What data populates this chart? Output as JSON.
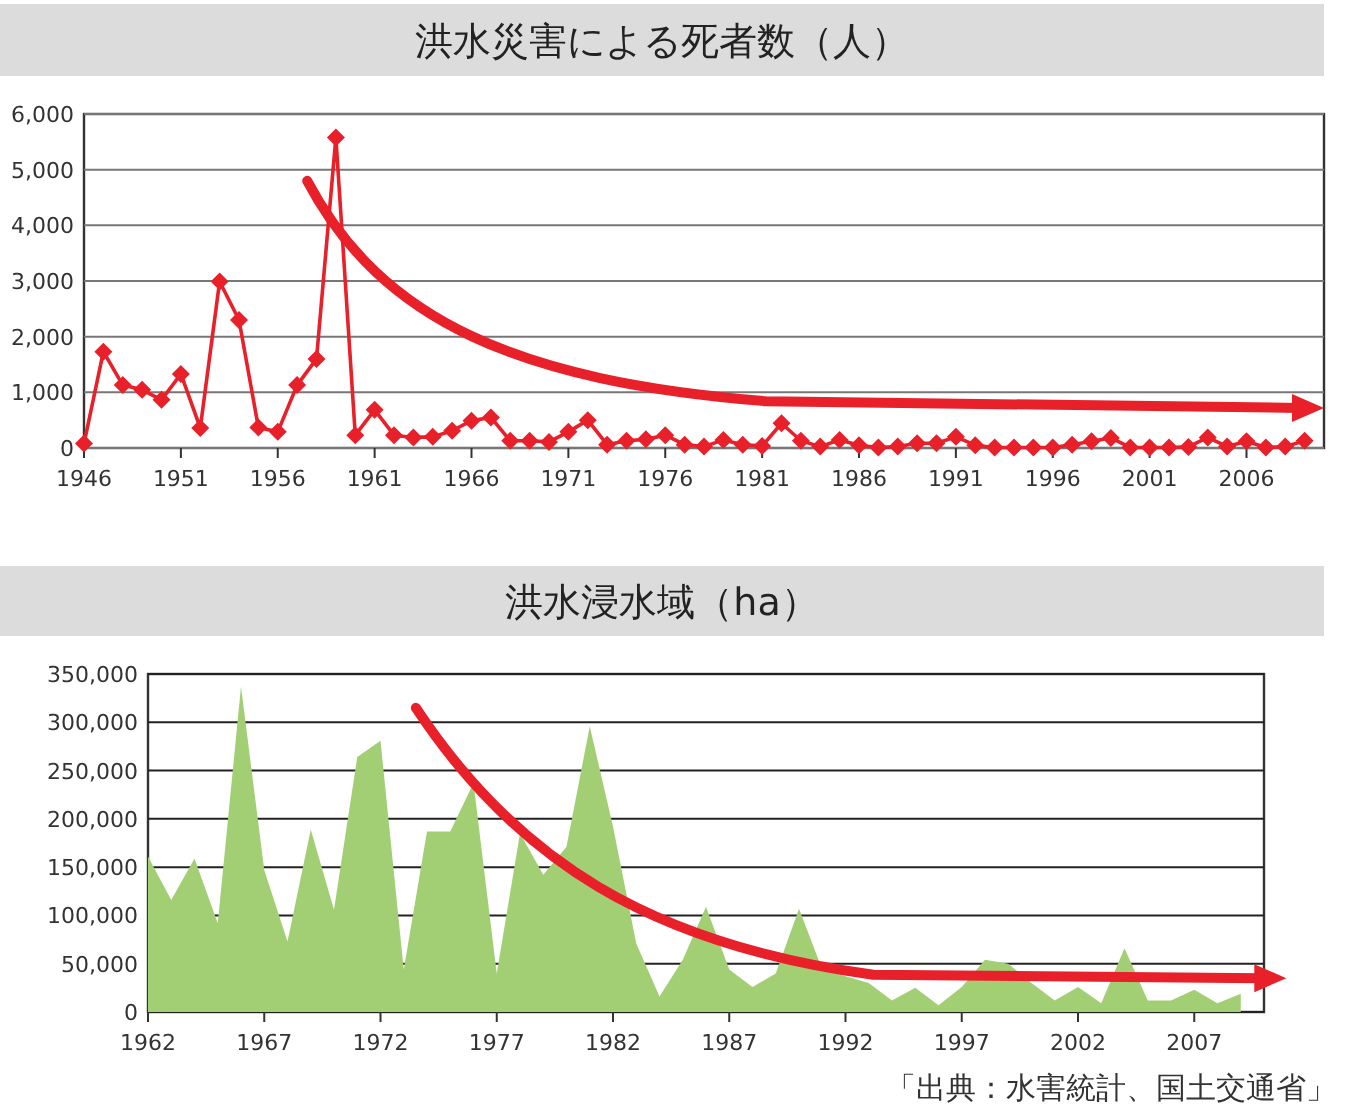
{
  "chart_data": [
    {
      "type": "line",
      "title": "洪水災害による死者数（人）",
      "marker": "diamond",
      "grid": "y",
      "x": [
        1946,
        1947,
        1948,
        1949,
        1950,
        1951,
        1952,
        1953,
        1954,
        1955,
        1956,
        1957,
        1958,
        1959,
        1960,
        1961,
        1962,
        1963,
        1964,
        1965,
        1966,
        1967,
        1968,
        1969,
        1970,
        1971,
        1972,
        1973,
        1974,
        1975,
        1976,
        1977,
        1978,
        1979,
        1980,
        1981,
        1982,
        1983,
        1984,
        1985,
        1986,
        1987,
        1988,
        1989,
        1990,
        1991,
        1992,
        1993,
        1994,
        1995,
        1996,
        1997,
        1998,
        1999,
        2000,
        2001,
        2002,
        2003,
        2004,
        2005,
        2006,
        2007,
        2008,
        2009
      ],
      "series": [
        {
          "color": "#e8202a",
          "values": [
            80,
            1730,
            1130,
            1045,
            865,
            1330,
            360,
            2990,
            2300,
            370,
            290,
            1130,
            1600,
            5580,
            230,
            685,
            230,
            190,
            200,
            310,
            490,
            550,
            130,
            130,
            110,
            290,
            500,
            60,
            130,
            155,
            230,
            60,
            25,
            145,
            60,
            35,
            445,
            130,
            25,
            145,
            50,
            10,
            25,
            85,
            85,
            200,
            50,
            10,
            10,
            10,
            10,
            60,
            120,
            180,
            10,
            10,
            10,
            20,
            190,
            25,
            120,
            10,
            25,
            130
          ]
        }
      ],
      "xlim": [
        1946,
        2010
      ],
      "xticks": [
        1946,
        1951,
        1956,
        1961,
        1966,
        1971,
        1976,
        1981,
        1986,
        1991,
        1996,
        2001,
        2006
      ],
      "ylim": [
        0,
        6000
      ],
      "yticks": [
        {
          "value": 0,
          "label": "0"
        },
        {
          "value": 1000,
          "label": "1,000"
        },
        {
          "value": 2000,
          "label": "2,000"
        },
        {
          "value": 3000,
          "label": "3,000"
        },
        {
          "value": 4000,
          "label": "4,000"
        },
        {
          "value": 5000,
          "label": "5,000"
        },
        {
          "value": 6000,
          "label": "6,000"
        }
      ]
    },
    {
      "type": "area",
      "title": "洪水浸水域（ha）",
      "grid": "y",
      "x": [
        1962,
        1963,
        1964,
        1965,
        1966,
        1967,
        1968,
        1969,
        1970,
        1971,
        1972,
        1973,
        1974,
        1975,
        1976,
        1977,
        1978,
        1979,
        1980,
        1981,
        1982,
        1983,
        1984,
        1985,
        1986,
        1987,
        1988,
        1989,
        1990,
        1991,
        1992,
        1993,
        1994,
        1995,
        1996,
        1997,
        1998,
        1999,
        2000,
        2001,
        2002,
        2003,
        2004,
        2005,
        2006,
        2007,
        2008,
        2009
      ],
      "series": [
        {
          "color": "#a3cf74",
          "values": [
            161000,
            116000,
            159000,
            92000,
            337000,
            147000,
            73000,
            189000,
            106000,
            264000,
            281000,
            44000,
            187000,
            187000,
            237000,
            40000,
            185000,
            142000,
            171000,
            296000,
            192000,
            71000,
            16000,
            54000,
            109000,
            44000,
            26000,
            40000,
            107000,
            44000,
            37000,
            30000,
            12000,
            25000,
            7000,
            26000,
            54000,
            50000,
            30000,
            12000,
            26000,
            9000,
            66000,
            12000,
            12000,
            23000,
            9000,
            19000
          ]
        }
      ],
      "xlim": [
        1962,
        2010
      ],
      "xticks": [
        1962,
        1967,
        1972,
        1977,
        1982,
        1987,
        1992,
        1997,
        2002,
        2007
      ],
      "ylim": [
        0,
        350000
      ],
      "yticks": [
        {
          "value": 0,
          "label": "0"
        },
        {
          "value": 50000,
          "label": "50,000"
        },
        {
          "value": 100000,
          "label": "100,000"
        },
        {
          "value": 150000,
          "label": "150,000"
        },
        {
          "value": 200000,
          "label": "200,000"
        },
        {
          "value": 250000,
          "label": "250,000"
        },
        {
          "value": 300000,
          "label": "300,000"
        },
        {
          "value": 350000,
          "label": "350,000"
        }
      ],
      "annotations": [
        "「出典：水害統計、国土交通省」"
      ]
    }
  ]
}
